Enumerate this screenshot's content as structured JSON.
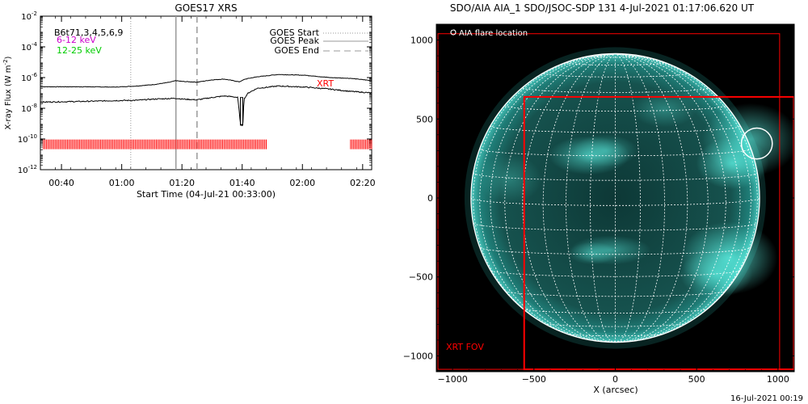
{
  "chart_data": [
    {
      "type": "line",
      "title": "GOES17 XRS",
      "xlabel": "Start Time (04-Jul-21 00:33:00)",
      "ylabel": "X-ray Flux (W m",
      "ylabel_sup": "-2",
      "ylabel_close": ")",
      "yscale": "log",
      "ylim": [
        1e-12,
        0.01
      ],
      "xlim_minutes": [
        0,
        110
      ],
      "yticks": [
        {
          "base": "10",
          "exp": "-2",
          "v": -2
        },
        {
          "base": "10",
          "exp": "-4",
          "v": -4
        },
        {
          "base": "10",
          "exp": "-6",
          "v": -6
        },
        {
          "base": "10",
          "exp": "-8",
          "v": -8
        },
        {
          "base": "10",
          "exp": "-10",
          "v": -10
        },
        {
          "base": "10",
          "exp": "-12",
          "v": -12
        }
      ],
      "xticks": [
        {
          "label": "00:40",
          "t": 7
        },
        {
          "label": "01:00",
          "t": 27
        },
        {
          "label": "01:20",
          "t": 47
        },
        {
          "label": "01:40",
          "t": 67
        },
        {
          "label": "02:00",
          "t": 87
        },
        {
          "label": "02:20",
          "t": 107
        }
      ],
      "legend_left": [
        {
          "text": "B6t71,3,4,5,6,9",
          "color": "#000000"
        },
        {
          "text": "6-12 keV",
          "color": "#cc00cc"
        },
        {
          "text": "12-25 keV",
          "color": "#00cc00"
        }
      ],
      "legend_right": [
        {
          "text": "GOES Start",
          "style": "dotted"
        },
        {
          "text": "GOES Peak",
          "style": "solid"
        },
        {
          "text": "GOES End",
          "style": "dashed"
        }
      ],
      "series": [
        {
          "t": [
            0,
            15,
            25,
            32,
            38,
            43,
            45,
            47,
            52,
            57,
            61,
            64,
            66,
            68,
            72,
            79,
            88,
            96,
            103,
            110
          ],
          "logflux": [
            -6.6,
            -6.6,
            -6.62,
            -6.55,
            -6.45,
            -6.3,
            -6.2,
            -6.25,
            -6.3,
            -6.15,
            -6.1,
            -6.2,
            -6.28,
            -6.1,
            -5.95,
            -5.8,
            -5.85,
            -6.0,
            -6.05,
            -6.2
          ]
        },
        {
          "t": [
            0,
            15,
            25,
            32,
            38,
            45,
            47,
            52,
            57,
            61,
            64,
            65.5,
            66,
            66.5,
            67.2,
            67.6,
            69,
            72,
            79,
            88,
            96,
            103,
            110
          ],
          "logflux": [
            -7.6,
            -7.55,
            -7.5,
            -7.48,
            -7.4,
            -7.35,
            -7.4,
            -7.45,
            -7.3,
            -7.2,
            -7.25,
            -7.3,
            -8.2,
            -9.1,
            -9.1,
            -7.4,
            -7.0,
            -6.7,
            -6.55,
            -6.62,
            -6.75,
            -6.9,
            -7.0
          ]
        }
      ],
      "goes_start_t": 30,
      "goes_peak_t": 45,
      "goes_end_t": 52,
      "peak_marker_t": 66.8,
      "xrt_label": "XRT",
      "xrt_coverage": [
        [
          1,
          75
        ],
        [
          103,
          110
        ]
      ],
      "xrt_level": -10.35,
      "colors": {
        "series": "#000000",
        "xrt": "#ff0000"
      }
    },
    {
      "type": "image",
      "title": "SDO/AIA AIA_1 SDO/JSOC-SDP 131  4-Jul-2021 01:17:06.620 UT",
      "xlabel": "X (arcsec)",
      "xlim": [
        -1100,
        1100
      ],
      "ylim": [
        -1100,
        1100
      ],
      "xticks": [
        -1000,
        -500,
        0,
        500,
        1000
      ],
      "yticks": [
        1000,
        500,
        0,
        -500,
        -1000
      ],
      "xtick_labels": [
        "−1000",
        "−500",
        "0",
        "500",
        "1000"
      ],
      "ytick_labels": [
        "1000",
        "500",
        "0",
        "−500",
        "−1000"
      ],
      "solar_radius": 900,
      "legend": "AIA flare location",
      "flare_location": [
        870,
        345
      ],
      "flare_radius": 95,
      "xrt_fov_label": "XRT FOV",
      "xrt_fov_boxes": [
        [
          -1090,
          -1085,
          1010,
          1040
        ],
        [
          -560,
          -1085,
          1130,
          640
        ]
      ],
      "colors": {
        "disk": "#1d8c86",
        "bright": "#4fe0d4",
        "grid": "#ffffff",
        "fov": "#ff0000"
      }
    }
  ],
  "footer_timestamp": "16-Jul-2021 00:19"
}
